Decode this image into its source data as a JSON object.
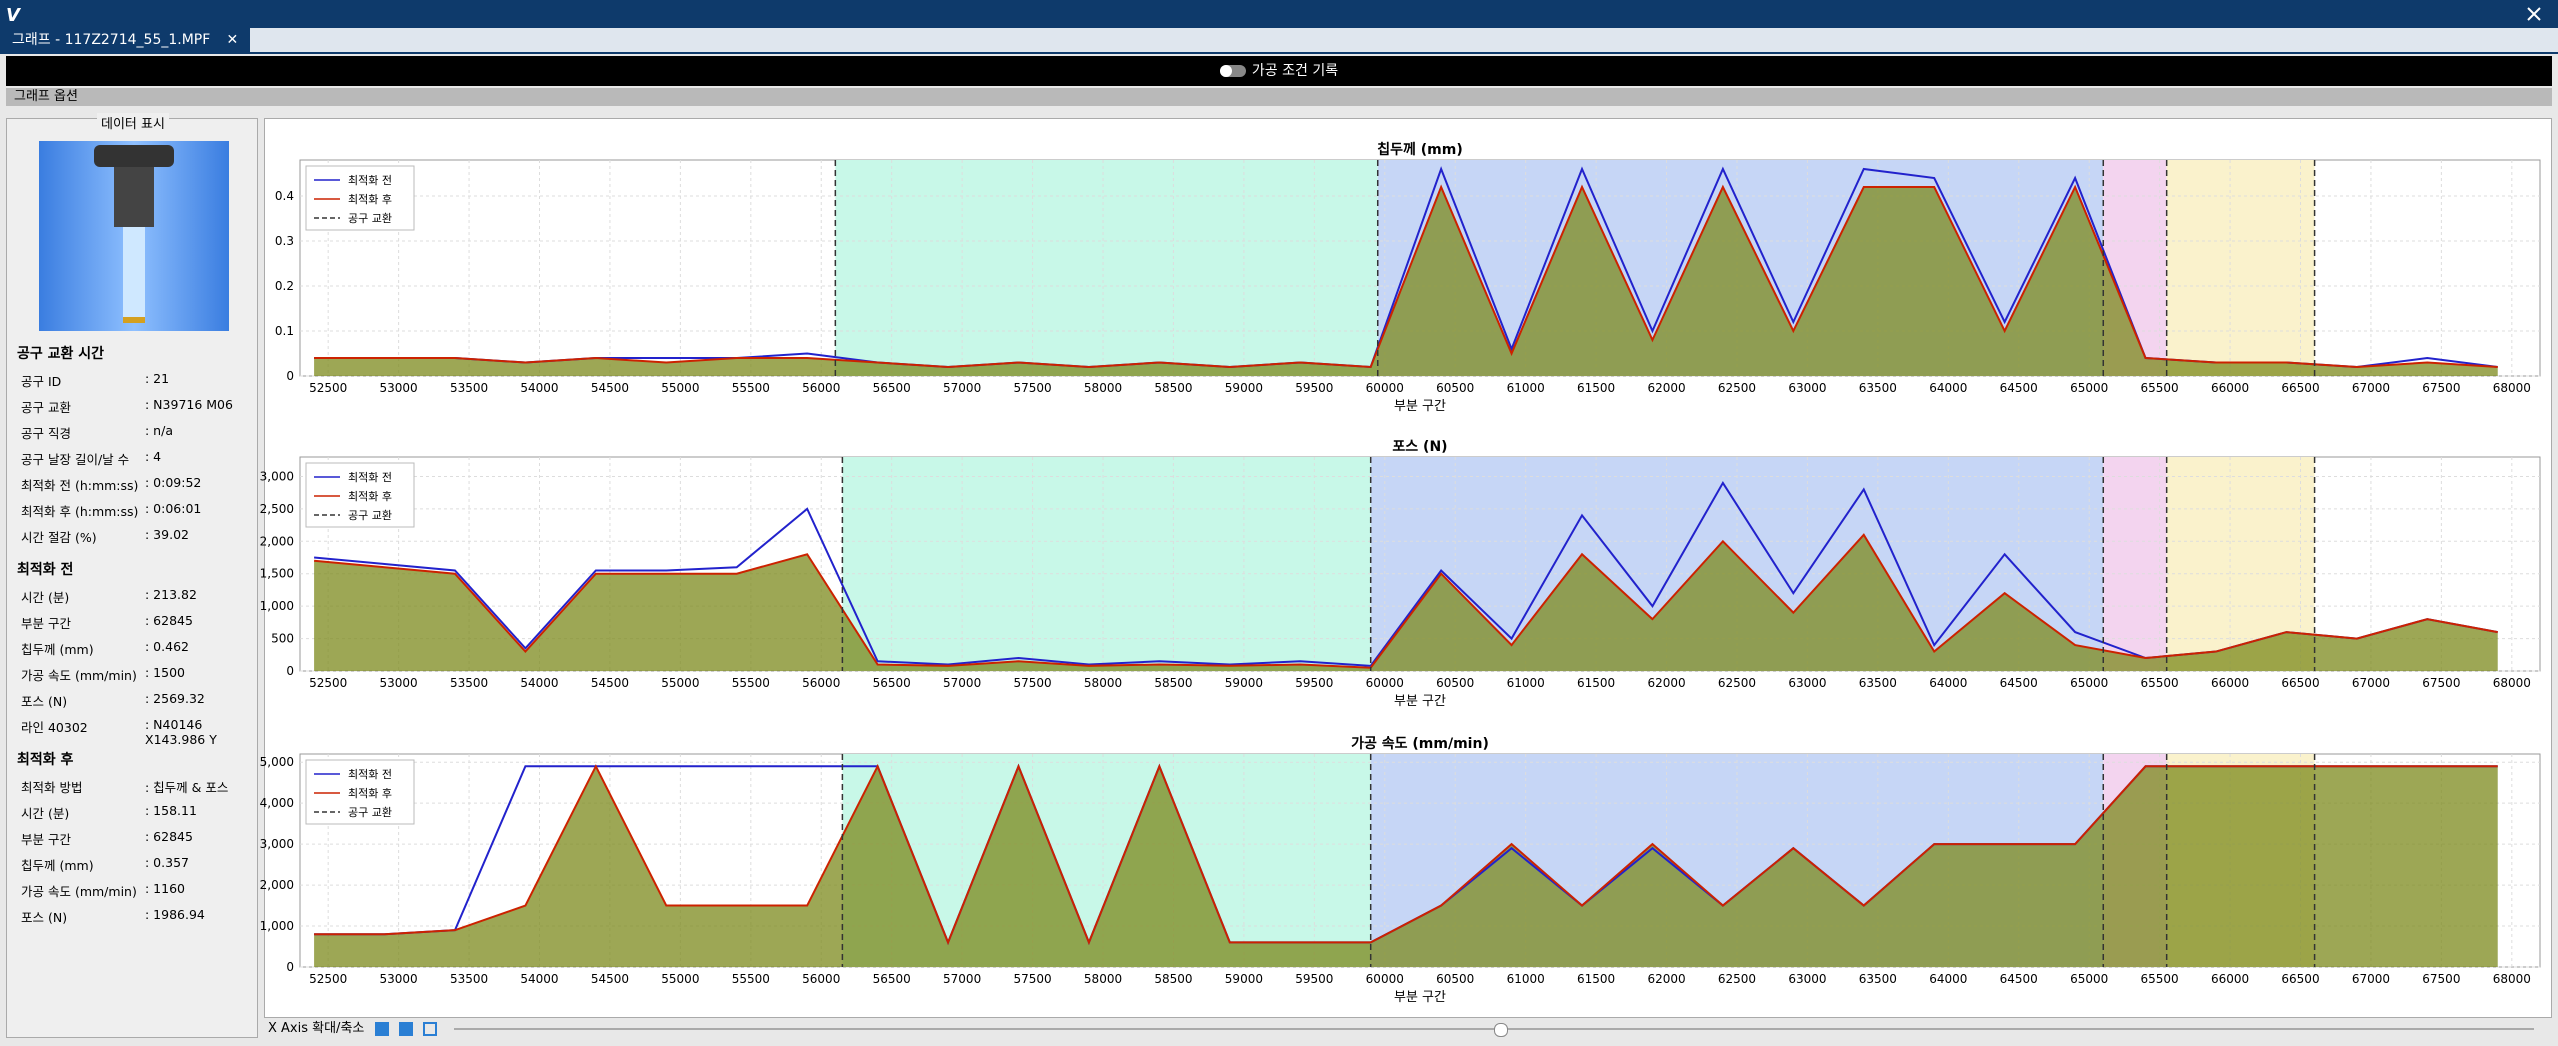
{
  "window": {
    "title": "그래프 - 117Z2714_55_1.MPF",
    "toggle": "가공 조건 기록",
    "options": "그래프 옵션"
  },
  "panel": {
    "title": "데이터 표시",
    "sections": [
      {
        "heading": "공구 교환 시간",
        "rows": [
          [
            "공구 ID",
            ": 21"
          ],
          [
            "공구 교환",
            ": N39716 M06"
          ],
          [
            "공구 직경",
            ": n/a"
          ],
          [
            "공구 날장 길이/날 수",
            ": 4"
          ],
          [
            "최적화 전 (h:mm:ss)",
            ": 0:09:52"
          ],
          [
            "최적화 후 (h:mm:ss)",
            ": 0:06:01"
          ],
          [
            "시간 절감 (%)",
            ": 39.02"
          ]
        ]
      },
      {
        "heading": "최적화 전",
        "rows": [
          [
            "시간 (분)",
            ": 213.82"
          ],
          [
            "부분 구간",
            ": 62845"
          ],
          [
            "칩두께 (mm)",
            ": 0.462"
          ],
          [
            "가공 속도 (mm/min)",
            ": 1500"
          ],
          [
            "포스 (N)",
            ": 2569.32"
          ],
          [
            "라인 40302",
            ": N40146 X143.986 Y"
          ]
        ]
      },
      {
        "heading": "최적화 후",
        "rows": [
          [
            "최적화 방법",
            ": 칩두께 & 포스"
          ],
          [
            "시간 (분)",
            ": 158.11"
          ],
          [
            "부분 구간",
            ": 62845"
          ],
          [
            "칩두께 (mm)",
            ": 0.357"
          ],
          [
            "가공 속도 (mm/min)",
            ": 1160"
          ],
          [
            "포스 (N)",
            ": 1986.94"
          ]
        ]
      }
    ]
  },
  "toolbar": {
    "label": "X Axis 확대/축소"
  },
  "chart_data": [
    {
      "type": "line",
      "title": "칩두께 (mm)",
      "x_label": "부분 구간",
      "x": [
        52400,
        52900,
        53400,
        53900,
        54400,
        54900,
        55400,
        55900,
        56400,
        56900,
        57400,
        57900,
        58400,
        58900,
        59400,
        59900,
        60400,
        60900,
        61400,
        61900,
        62400,
        62900,
        63400,
        63900,
        64400,
        64900,
        65400,
        65900,
        66400,
        66900,
        67400,
        67900
      ],
      "series": [
        {
          "name": "최적화 전",
          "color": "#2222cc",
          "values": [
            0.04,
            0.04,
            0.04,
            0.03,
            0.04,
            0.04,
            0.04,
            0.05,
            0.03,
            0.02,
            0.03,
            0.02,
            0.03,
            0.02,
            0.03,
            0.02,
            0.46,
            0.06,
            0.46,
            0.1,
            0.46,
            0.12,
            0.46,
            0.44,
            0.12,
            0.44,
            0.04,
            0.03,
            0.03,
            0.02,
            0.04,
            0.02
          ]
        },
        {
          "name": "최적화 후",
          "color": "#cc2200",
          "values": [
            0.04,
            0.04,
            0.04,
            0.03,
            0.04,
            0.03,
            0.04,
            0.04,
            0.03,
            0.02,
            0.03,
            0.02,
            0.03,
            0.02,
            0.03,
            0.02,
            0.42,
            0.05,
            0.42,
            0.08,
            0.42,
            0.1,
            0.42,
            0.42,
            0.1,
            0.42,
            0.04,
            0.03,
            0.03,
            0.02,
            0.03,
            0.02
          ]
        }
      ],
      "tool_change": {
        "name": "공구 교환",
        "color": "#333333",
        "x": [
          56100,
          59950,
          65100,
          65550,
          66600
        ]
      },
      "regions": [
        {
          "x": [
            56100,
            59950
          ],
          "color": "#c8f8e8"
        },
        {
          "x": [
            59950,
            65100
          ],
          "color": "#c6d6f6"
        },
        {
          "x": [
            65100,
            65550
          ],
          "color": "#f3d4ef"
        },
        {
          "x": [
            65550,
            66600
          ],
          "color": "#faf2cc"
        }
      ],
      "xlim": [
        52300,
        68200
      ],
      "xticks": [
        52500,
        53000,
        53500,
        54000,
        54500,
        55000,
        55500,
        56000,
        56500,
        57000,
        57500,
        58000,
        58500,
        59000,
        59500,
        60000,
        60500,
        61000,
        61500,
        62000,
        62500,
        63000,
        63500,
        64000,
        64500,
        65000,
        65500,
        66000,
        66500,
        67000,
        67500,
        68000
      ],
      "ylim": [
        0,
        0.48
      ],
      "yticks": [
        0,
        0.1,
        0.2,
        0.3,
        0.4
      ],
      "grid": true
    },
    {
      "type": "line",
      "title": "포스 (N)",
      "x_label": "부분 구간",
      "x": [
        52400,
        52900,
        53400,
        53900,
        54400,
        54900,
        55400,
        55900,
        56400,
        56900,
        57400,
        57900,
        58400,
        58900,
        59400,
        59900,
        60400,
        60900,
        61400,
        61900,
        62400,
        62900,
        63400,
        63900,
        64400,
        64900,
        65400,
        65900,
        66400,
        66900,
        67400,
        67900
      ],
      "series": [
        {
          "name": "최적화 전",
          "color": "#2222cc",
          "values": [
            1750,
            1650,
            1550,
            350,
            1550,
            1550,
            1600,
            2500,
            150,
            100,
            200,
            100,
            150,
            100,
            150,
            80,
            1550,
            500,
            2400,
            1000,
            2900,
            1200,
            2800,
            400,
            1800,
            600,
            200,
            300,
            600,
            500,
            800,
            600
          ]
        },
        {
          "name": "최적화 후",
          "color": "#cc2200",
          "values": [
            1700,
            1600,
            1500,
            300,
            1500,
            1500,
            1500,
            1800,
            100,
            80,
            150,
            80,
            100,
            80,
            100,
            50,
            1500,
            400,
            1800,
            800,
            2000,
            900,
            2100,
            300,
            1200,
            400,
            200,
            300,
            600,
            500,
            800,
            600
          ]
        }
      ],
      "tool_change": {
        "name": "공구 교환",
        "color": "#333333",
        "x": [
          56150,
          59900,
          65100,
          65550,
          66600
        ]
      },
      "regions": [
        {
          "x": [
            56150,
            59900
          ],
          "color": "#c8f8e8"
        },
        {
          "x": [
            59900,
            65100
          ],
          "color": "#c6d6f6"
        },
        {
          "x": [
            65100,
            65550
          ],
          "color": "#f3d4ef"
        },
        {
          "x": [
            65550,
            66600
          ],
          "color": "#faf2cc"
        }
      ],
      "xlim": [
        52300,
        68200
      ],
      "xticks": [
        52500,
        53000,
        53500,
        54000,
        54500,
        55000,
        55500,
        56000,
        56500,
        57000,
        57500,
        58000,
        58500,
        59000,
        59500,
        60000,
        60500,
        61000,
        61500,
        62000,
        62500,
        63000,
        63500,
        64000,
        64500,
        65000,
        65500,
        66000,
        66500,
        67000,
        67500,
        68000
      ],
      "ylim": [
        0,
        3300
      ],
      "yticks": [
        0,
        500,
        {
          "value": 1000,
          "label": "1,000"
        },
        {
          "value": 1500,
          "label": "1,500"
        },
        {
          "value": 2000,
          "label": "2,000"
        },
        {
          "value": 2500,
          "label": "2,500"
        },
        {
          "value": 3000,
          "label": "3,000"
        }
      ],
      "grid": true
    },
    {
      "type": "line",
      "title": "가공 속도 (mm/min)",
      "x_label": "부분 구간",
      "x": [
        52400,
        52900,
        53400,
        53900,
        54400,
        54900,
        55400,
        55900,
        56400,
        56900,
        57400,
        57900,
        58400,
        58900,
        59400,
        59900,
        60400,
        60900,
        61400,
        61900,
        62400,
        62900,
        63400,
        63900,
        64400,
        64900,
        65400,
        65900,
        66400,
        66900,
        67400,
        67900
      ],
      "series": [
        {
          "name": "최적화 전",
          "color": "#2222cc",
          "values": [
            800,
            800,
            900,
            4900,
            4900,
            4900,
            4900,
            4900,
            4900,
            600,
            4900,
            600,
            4900,
            600,
            600,
            600,
            1500,
            2900,
            1500,
            2900,
            1500,
            2900,
            1500,
            3000,
            3000,
            3000,
            4900,
            4900,
            4900,
            4900,
            4900,
            4900
          ]
        },
        {
          "name": "최적화 후",
          "color": "#cc2200",
          "values": [
            800,
            800,
            900,
            1500,
            4900,
            1500,
            1500,
            1500,
            4900,
            600,
            4900,
            600,
            4900,
            600,
            600,
            600,
            1500,
            3000,
            1500,
            3000,
            1500,
            2900,
            1500,
            3000,
            3000,
            3000,
            4900,
            4900,
            4900,
            4900,
            4900,
            4900
          ]
        }
      ],
      "tool_change": {
        "name": "공구 교환",
        "color": "#333333",
        "x": [
          56150,
          59900,
          65100,
          65550,
          66600
        ]
      },
      "regions": [
        {
          "x": [
            56150,
            59900
          ],
          "color": "#c8f8e8"
        },
        {
          "x": [
            59900,
            65100
          ],
          "color": "#c6d6f6"
        },
        {
          "x": [
            65100,
            65550
          ],
          "color": "#f3d4ef"
        },
        {
          "x": [
            65550,
            66600
          ],
          "color": "#faf2cc"
        }
      ],
      "xlim": [
        52300,
        68200
      ],
      "xticks": [
        52500,
        53000,
        53500,
        54000,
        54500,
        55000,
        55500,
        56000,
        56500,
        57000,
        57500,
        58000,
        58500,
        59000,
        59500,
        60000,
        60500,
        61000,
        61500,
        62000,
        62500,
        63000,
        63500,
        64000,
        64500,
        65000,
        65500,
        66000,
        66500,
        67000,
        67500,
        68000
      ],
      "ylim": [
        0,
        5200
      ],
      "yticks": [
        0,
        {
          "value": 1000,
          "label": "1,000"
        },
        {
          "value": 2000,
          "label": "2,000"
        },
        {
          "value": 3000,
          "label": "3,000"
        },
        {
          "value": 4000,
          "label": "4,000"
        },
        {
          "value": 5000,
          "label": "5,000"
        }
      ],
      "grid": true
    }
  ]
}
